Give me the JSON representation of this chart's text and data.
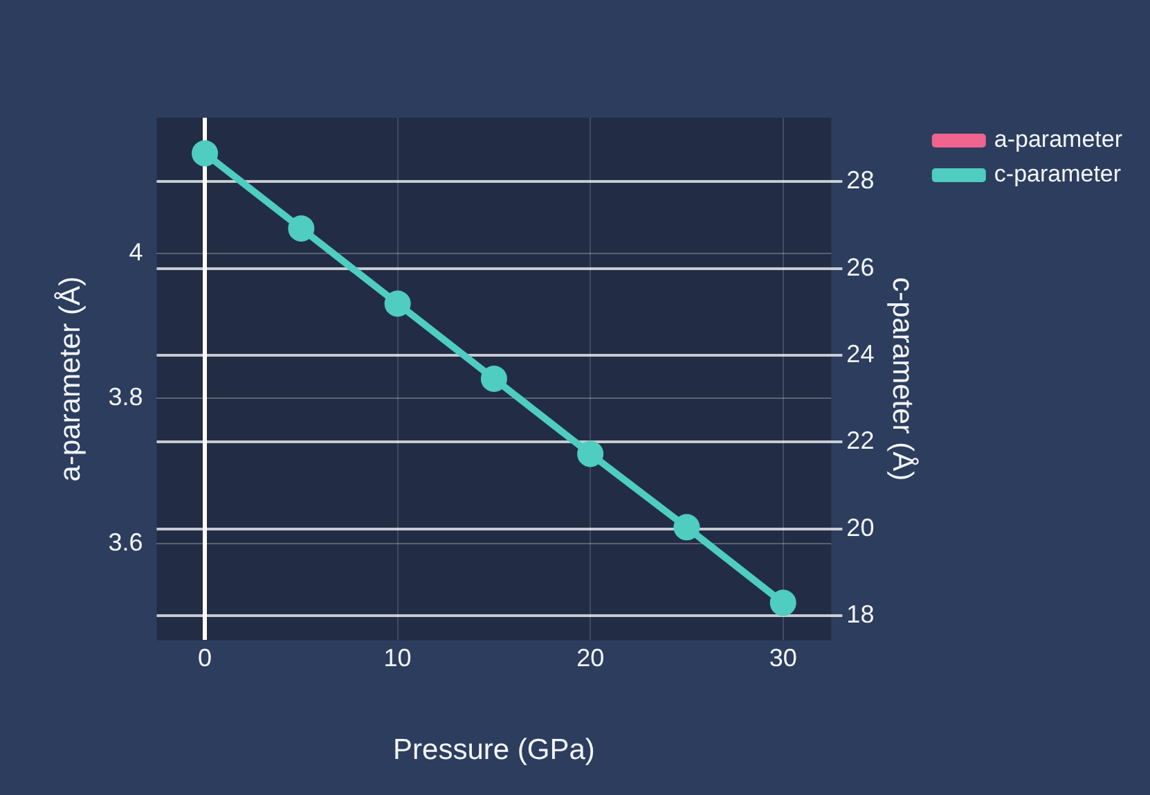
{
  "chart_data": {
    "type": "line",
    "xlabel": "Pressure (GPa)",
    "ylabel": "a-parameter (Å)",
    "y2label": "c-parameter (Å)",
    "x": [
      0,
      5,
      10,
      15,
      20,
      25,
      30
    ],
    "series": [
      {
        "name": "a-parameter",
        "color": "#f0648f",
        "values": [
          null,
          null,
          null,
          null,
          null,
          null,
          null
        ]
      },
      {
        "name": "c-parameter",
        "color": "#4ecdc0",
        "axis": "y2",
        "values": [
          28.65,
          26.92,
          25.19,
          23.46,
          21.73,
          20.04,
          18.3
        ]
      }
    ],
    "xlim": [
      -2.5,
      32.5
    ],
    "xticks": [
      0,
      10,
      20,
      30
    ],
    "ylim": [
      3.467,
      4.187
    ],
    "yticks": [
      3.6,
      3.8,
      4
    ],
    "y2lim": [
      17.44,
      29.47
    ],
    "y2ticks": [
      18,
      20,
      22,
      24,
      26,
      28
    ],
    "grid": true,
    "legend": "top right",
    "marker": "circle",
    "line_style": "solid"
  }
}
